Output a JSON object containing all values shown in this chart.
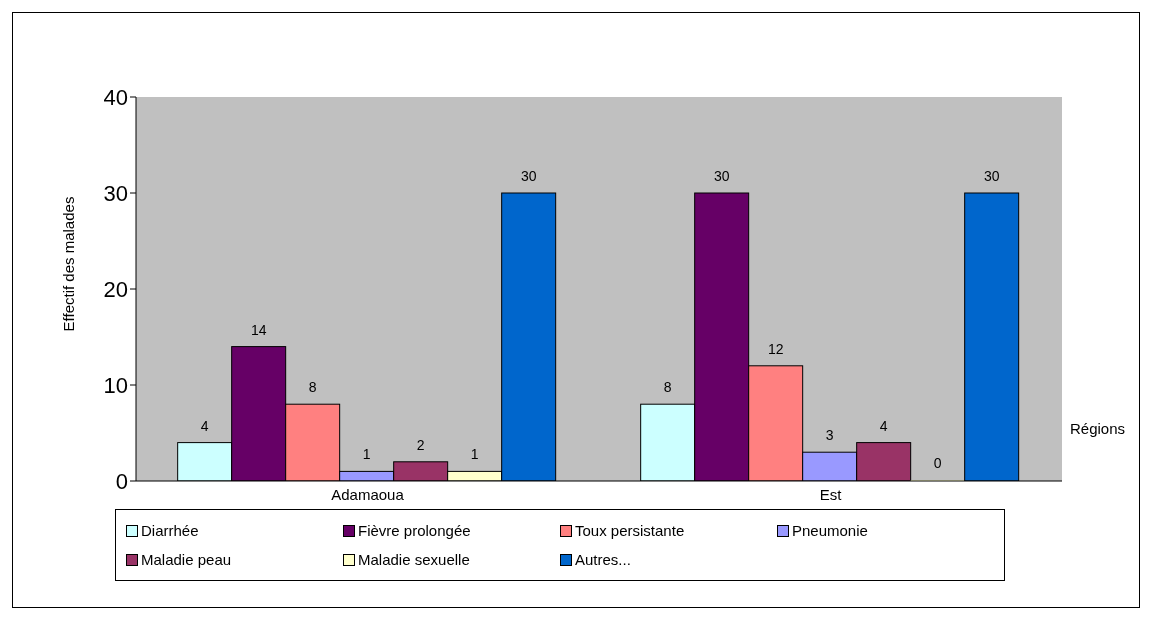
{
  "chart_data": {
    "type": "bar",
    "xlabel": "Régions",
    "ylabel": "Effectif des malades",
    "categories": [
      "Adamaoua",
      "Est"
    ],
    "series": [
      {
        "name": "Diarrhée",
        "color": "#ccffff",
        "values": [
          4,
          8
        ]
      },
      {
        "name": "Fièvre prolongée",
        "color": "#660066",
        "values": [
          14,
          30
        ]
      },
      {
        "name": "Toux persistante",
        "color": "#ff8080",
        "values": [
          8,
          12
        ]
      },
      {
        "name": "Pneumonie",
        "color": "#9999ff",
        "values": [
          1,
          3
        ]
      },
      {
        "name": "Maladie peau",
        "color": "#993366",
        "values": [
          2,
          4
        ]
      },
      {
        "name": "Maladie sexuelle",
        "color": "#ffffcc",
        "values": [
          1,
          0
        ]
      },
      {
        "name": "Autres...",
        "color": "#0066cc",
        "values": [
          30,
          30
        ]
      }
    ],
    "ylim": [
      0,
      40
    ],
    "yticks": [
      0,
      10,
      20,
      30,
      40
    ],
    "grid": false,
    "legend": "bottom",
    "data_labels": true
  }
}
